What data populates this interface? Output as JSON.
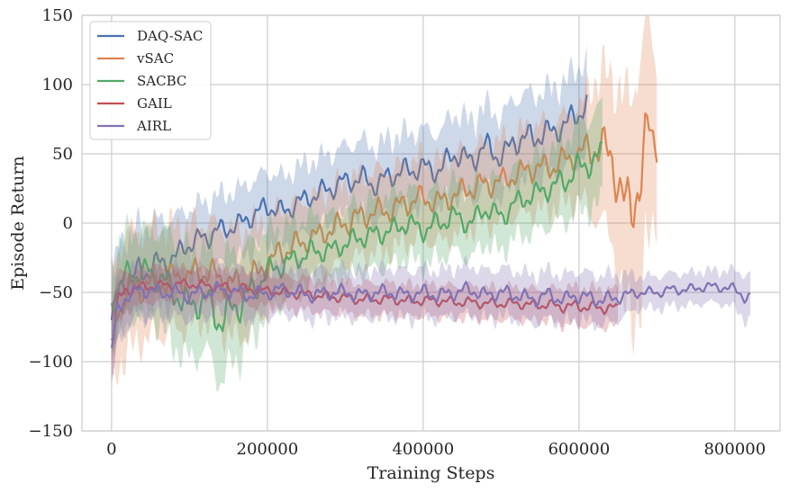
{
  "chart_data": {
    "type": "line",
    "title": "",
    "xlabel": "Training Steps",
    "ylabel": "Episode Return",
    "xlim": [
      -38000,
      858000
    ],
    "ylim": [
      -150,
      150
    ],
    "xticks": [
      0,
      200000,
      400000,
      600000,
      800000
    ],
    "xtick_labels": [
      "0",
      "200000",
      "400000",
      "600000",
      "800000"
    ],
    "yticks": [
      -150,
      -100,
      -50,
      0,
      50,
      100,
      150
    ],
    "ytick_labels": [
      "−150",
      "−100",
      "−50",
      "0",
      "50",
      "100",
      "150"
    ],
    "grid": true,
    "legend_position": "top-left",
    "series": [
      {
        "name": "DAQ-SAC",
        "color": "#4c72b0",
        "x": [
          0,
          10000,
          20000,
          40000,
          60000,
          80000,
          100000,
          120000,
          140000,
          160000,
          180000,
          200000,
          220000,
          240000,
          260000,
          280000,
          300000,
          320000,
          340000,
          360000,
          380000,
          400000,
          420000,
          440000,
          460000,
          480000,
          500000,
          520000,
          540000,
          560000,
          580000,
          600000,
          610000
        ],
        "y": [
          -70,
          -48,
          -40,
          -35,
          -30,
          -25,
          -15,
          -10,
          -5,
          -2,
          5,
          12,
          8,
          15,
          20,
          25,
          30,
          32,
          28,
          35,
          38,
          40,
          38,
          50,
          45,
          55,
          48,
          60,
          62,
          65,
          70,
          80,
          85
        ],
        "band": [
          30,
          34,
          34,
          34,
          32,
          30,
          26,
          26,
          26,
          26,
          26,
          26,
          26,
          26,
          26,
          26,
          26,
          28,
          28,
          28,
          28,
          28,
          28,
          30,
          30,
          30,
          30,
          32,
          32,
          32,
          32,
          34,
          34
        ]
      },
      {
        "name": "vSAC",
        "color": "#dd8452",
        "x": [
          0,
          10000,
          20000,
          40000,
          60000,
          80000,
          100000,
          120000,
          140000,
          160000,
          180000,
          200000,
          220000,
          240000,
          260000,
          280000,
          300000,
          320000,
          340000,
          360000,
          380000,
          400000,
          420000,
          440000,
          460000,
          480000,
          500000,
          520000,
          540000,
          560000,
          580000,
          600000,
          620000,
          640000,
          660000,
          680000,
          690000,
          700000
        ],
        "y": [
          -75,
          -60,
          -50,
          -45,
          -42,
          -40,
          -38,
          -35,
          -40,
          -45,
          -40,
          -30,
          -20,
          -15,
          -10,
          -5,
          0,
          5,
          8,
          10,
          15,
          18,
          15,
          20,
          25,
          28,
          30,
          35,
          40,
          40,
          45,
          50,
          55,
          50,
          10,
          30,
          70,
          62
        ],
        "band": [
          40,
          44,
          44,
          40,
          40,
          38,
          38,
          36,
          38,
          40,
          38,
          34,
          32,
          30,
          30,
          30,
          30,
          30,
          30,
          30,
          30,
          30,
          30,
          30,
          30,
          30,
          30,
          30,
          32,
          32,
          32,
          34,
          50,
          60,
          80,
          90,
          80,
          55
        ]
      },
      {
        "name": "SACBC",
        "color": "#55a868",
        "x": [
          0,
          10000,
          20000,
          40000,
          60000,
          80000,
          100000,
          120000,
          140000,
          160000,
          180000,
          200000,
          220000,
          240000,
          260000,
          280000,
          300000,
          320000,
          340000,
          360000,
          380000,
          400000,
          420000,
          440000,
          460000,
          480000,
          500000,
          520000,
          540000,
          560000,
          580000,
          600000,
          620000,
          630000
        ],
        "y": [
          -60,
          -45,
          -38,
          -35,
          -38,
          -50,
          -60,
          -55,
          -70,
          -60,
          -50,
          -35,
          -30,
          -25,
          -20,
          -20,
          -15,
          -10,
          -8,
          -5,
          0,
          -5,
          0,
          5,
          0,
          10,
          5,
          15,
          20,
          25,
          30,
          40,
          45,
          50
        ],
        "band": [
          30,
          32,
          32,
          30,
          34,
          40,
          40,
          38,
          44,
          40,
          36,
          30,
          28,
          26,
          26,
          26,
          26,
          26,
          26,
          26,
          26,
          26,
          26,
          26,
          26,
          26,
          26,
          26,
          28,
          28,
          30,
          32,
          34,
          36
        ]
      },
      {
        "name": "GAIL",
        "color": "#c44e52",
        "x": [
          0,
          10000,
          20000,
          40000,
          60000,
          80000,
          100000,
          120000,
          140000,
          160000,
          180000,
          200000,
          220000,
          240000,
          260000,
          280000,
          300000,
          320000,
          340000,
          360000,
          380000,
          400000,
          420000,
          440000,
          460000,
          480000,
          500000,
          520000,
          540000,
          560000,
          580000,
          600000,
          620000,
          640000,
          650000
        ],
        "y": [
          -80,
          -55,
          -48,
          -46,
          -45,
          -44,
          -44,
          -45,
          -46,
          -47,
          -48,
          -49,
          -50,
          -51,
          -52,
          -53,
          -54,
          -55,
          -55,
          -55,
          -56,
          -56,
          -56,
          -57,
          -57,
          -58,
          -58,
          -58,
          -59,
          -59,
          -60,
          -60,
          -61,
          -61,
          -62
        ],
        "band": [
          26,
          18,
          14,
          12,
          12,
          12,
          12,
          12,
          12,
          12,
          12,
          12,
          12,
          12,
          12,
          12,
          12,
          12,
          12,
          12,
          12,
          12,
          12,
          12,
          12,
          12,
          12,
          12,
          12,
          12,
          14,
          14,
          14,
          14,
          14
        ]
      },
      {
        "name": "AIRL",
        "color": "#8172b3",
        "x": [
          0,
          10000,
          20000,
          40000,
          60000,
          80000,
          100000,
          120000,
          140000,
          160000,
          180000,
          200000,
          220000,
          240000,
          260000,
          280000,
          300000,
          320000,
          340000,
          360000,
          380000,
          400000,
          420000,
          440000,
          460000,
          480000,
          500000,
          520000,
          540000,
          560000,
          580000,
          600000,
          620000,
          640000,
          660000,
          680000,
          700000,
          720000,
          740000,
          760000,
          780000,
          800000,
          820000
        ],
        "y": [
          -90,
          -60,
          -52,
          -48,
          -50,
          -50,
          -52,
          -50,
          -48,
          -50,
          -52,
          -50,
          -48,
          -50,
          -52,
          -50,
          -50,
          -52,
          -50,
          -50,
          -52,
          -50,
          -52,
          -50,
          -48,
          -52,
          -50,
          -52,
          -55,
          -52,
          -55,
          -52,
          -55,
          -55,
          -52,
          -50,
          -50,
          -48,
          -48,
          -46,
          -46,
          -48,
          -55
        ],
        "band": [
          30,
          24,
          20,
          18,
          18,
          18,
          18,
          18,
          18,
          18,
          18,
          18,
          18,
          18,
          18,
          18,
          18,
          18,
          18,
          18,
          18,
          18,
          18,
          18,
          18,
          18,
          18,
          18,
          18,
          18,
          18,
          18,
          18,
          18,
          15,
          12,
          12,
          12,
          12,
          12,
          12,
          14,
          18
        ]
      }
    ]
  }
}
